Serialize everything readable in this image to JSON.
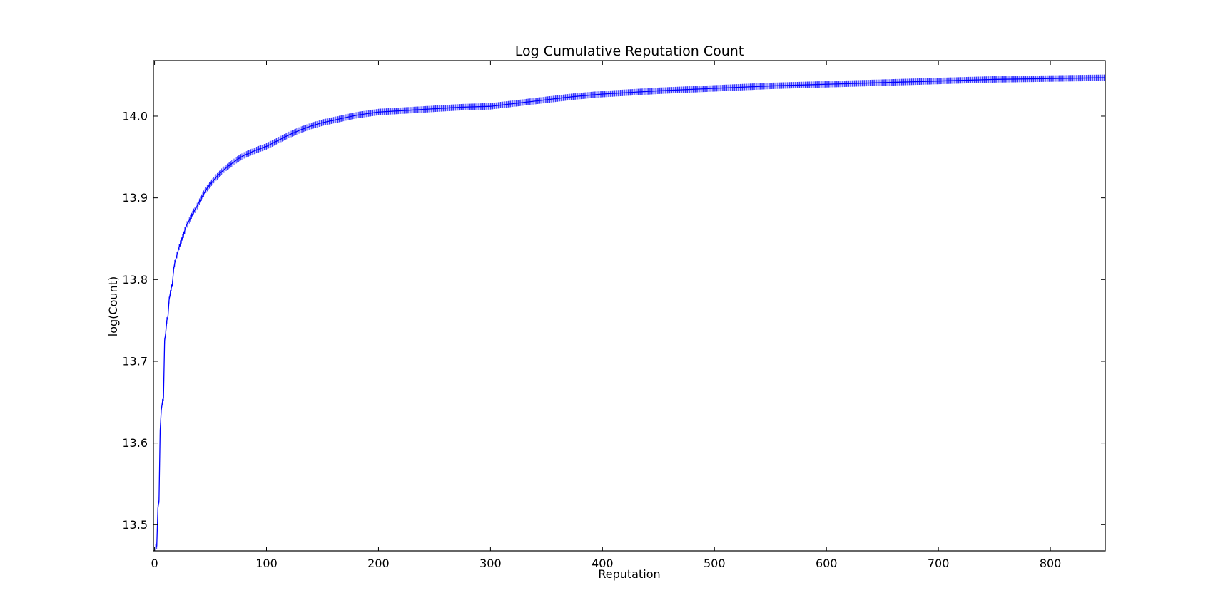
{
  "chart_data": {
    "type": "line",
    "title": "Log Cumulative Reputation Count",
    "xlabel": "Reputation",
    "ylabel": "log(Count)",
    "xlim": [
      -1,
      849
    ],
    "ylim": [
      13.468,
      14.068
    ],
    "xticks": [
      0,
      100,
      200,
      300,
      400,
      500,
      600,
      700,
      800
    ],
    "xtick_labels": [
      "0",
      "100",
      "200",
      "300",
      "400",
      "500",
      "600",
      "700",
      "800"
    ],
    "yticks": [
      13.5,
      13.6,
      13.7,
      13.8,
      13.9,
      14.0
    ],
    "ytick_labels": [
      "13.5",
      "13.6",
      "13.7",
      "13.8",
      "13.9",
      "14.0"
    ],
    "grid": false,
    "legend": "none",
    "marker": "|",
    "series_color": "#0000ff",
    "series": [
      {
        "x": [
          1,
          2,
          3,
          4,
          5,
          6,
          7,
          8,
          9,
          10,
          11,
          12,
          13,
          14,
          15,
          16,
          17,
          18,
          20,
          22,
          24,
          26,
          28,
          30,
          32,
          35,
          38,
          41,
          44,
          47,
          50,
          55,
          60,
          65,
          70,
          75,
          80,
          90,
          100,
          110,
          120,
          130,
          140,
          150,
          160,
          170,
          180,
          190,
          200,
          225,
          250,
          275,
          300,
          325,
          350,
          375,
          400,
          450,
          500,
          550,
          600,
          650,
          700,
          750,
          800,
          849
        ],
        "y": [
          13.472,
          13.474,
          13.52,
          13.53,
          13.615,
          13.64,
          13.65,
          13.655,
          13.725,
          13.735,
          13.75,
          13.755,
          13.775,
          13.783,
          13.79,
          13.795,
          13.812,
          13.82,
          13.83,
          13.84,
          13.848,
          13.855,
          13.865,
          13.87,
          13.875,
          13.883,
          13.89,
          13.898,
          13.905,
          13.912,
          13.917,
          13.925,
          13.932,
          13.938,
          13.943,
          13.948,
          13.952,
          13.958,
          13.963,
          13.97,
          13.977,
          13.983,
          13.988,
          13.992,
          13.995,
          13.998,
          14.001,
          14.003,
          14.005,
          14.007,
          14.009,
          14.011,
          14.012,
          14.016,
          14.02,
          14.024,
          14.027,
          14.031,
          14.034,
          14.037,
          14.039,
          14.041,
          14.043,
          14.045,
          14.046,
          14.047
        ]
      }
    ]
  }
}
